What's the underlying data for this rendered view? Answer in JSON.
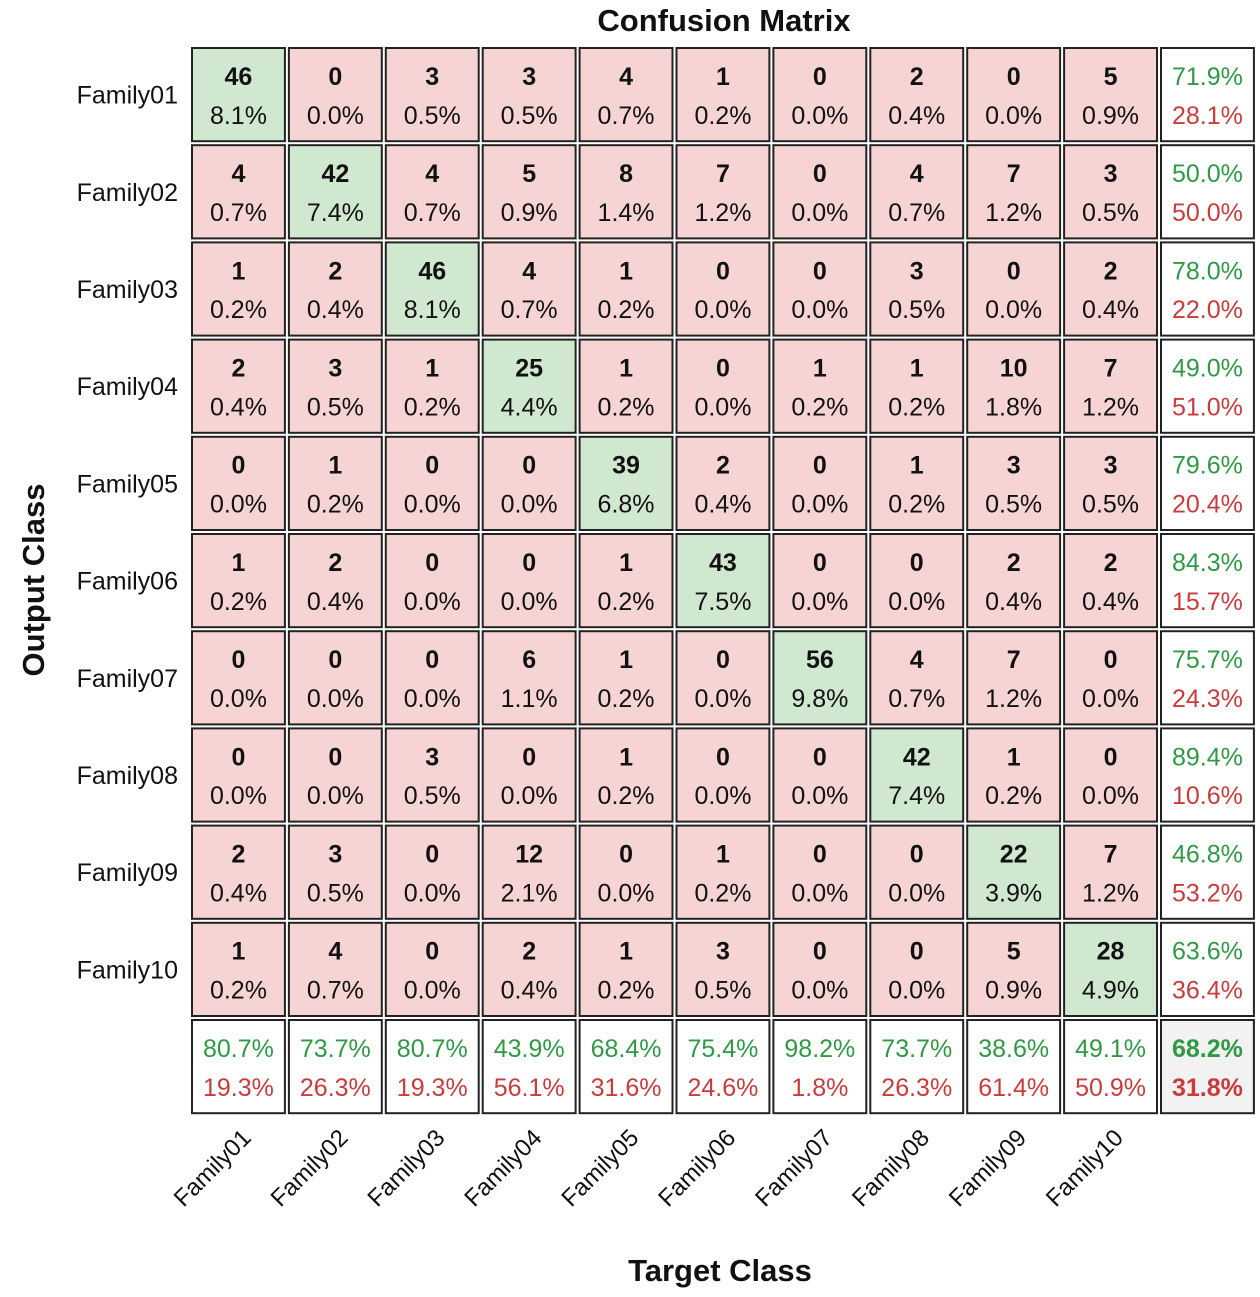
{
  "chart_data": {
    "type": "heatmap",
    "title": "Confusion Matrix",
    "xlabel": "Target Class",
    "ylabel": "Output Class",
    "row_labels": [
      "Family01",
      "Family02",
      "Family03",
      "Family04",
      "Family05",
      "Family06",
      "Family07",
      "Family08",
      "Family09",
      "Family10"
    ],
    "col_labels": [
      "Family01",
      "Family02",
      "Family03",
      "Family04",
      "Family05",
      "Family06",
      "Family07",
      "Family08",
      "Family09",
      "Family10"
    ],
    "counts": [
      [
        46,
        0,
        3,
        3,
        4,
        1,
        0,
        2,
        0,
        5
      ],
      [
        4,
        42,
        4,
        5,
        8,
        7,
        0,
        4,
        7,
        3
      ],
      [
        1,
        2,
        46,
        4,
        1,
        0,
        0,
        3,
        0,
        2
      ],
      [
        2,
        3,
        1,
        25,
        1,
        0,
        1,
        1,
        10,
        7
      ],
      [
        0,
        1,
        0,
        0,
        39,
        2,
        0,
        1,
        3,
        3
      ],
      [
        1,
        2,
        0,
        0,
        1,
        43,
        0,
        0,
        2,
        2
      ],
      [
        0,
        0,
        0,
        6,
        1,
        0,
        56,
        4,
        7,
        0
      ],
      [
        0,
        0,
        3,
        0,
        1,
        0,
        0,
        42,
        1,
        0
      ],
      [
        2,
        3,
        0,
        12,
        0,
        1,
        0,
        0,
        22,
        7
      ],
      [
        1,
        4,
        0,
        2,
        1,
        3,
        0,
        0,
        5,
        28
      ]
    ],
    "percents": [
      [
        "8.1%",
        "0.0%",
        "0.5%",
        "0.5%",
        "0.7%",
        "0.2%",
        "0.0%",
        "0.4%",
        "0.0%",
        "0.9%"
      ],
      [
        "0.7%",
        "7.4%",
        "0.7%",
        "0.9%",
        "1.4%",
        "1.2%",
        "0.0%",
        "0.7%",
        "1.2%",
        "0.5%"
      ],
      [
        "0.2%",
        "0.4%",
        "8.1%",
        "0.7%",
        "0.2%",
        "0.0%",
        "0.0%",
        "0.5%",
        "0.0%",
        "0.4%"
      ],
      [
        "0.4%",
        "0.5%",
        "0.2%",
        "4.4%",
        "0.2%",
        "0.0%",
        "0.2%",
        "0.2%",
        "1.8%",
        "1.2%"
      ],
      [
        "0.0%",
        "0.2%",
        "0.0%",
        "0.0%",
        "6.8%",
        "0.4%",
        "0.0%",
        "0.2%",
        "0.5%",
        "0.5%"
      ],
      [
        "0.2%",
        "0.4%",
        "0.0%",
        "0.0%",
        "0.2%",
        "7.5%",
        "0.0%",
        "0.0%",
        "0.4%",
        "0.4%"
      ],
      [
        "0.0%",
        "0.0%",
        "0.0%",
        "1.1%",
        "0.2%",
        "0.0%",
        "9.8%",
        "0.7%",
        "1.2%",
        "0.0%"
      ],
      [
        "0.0%",
        "0.0%",
        "0.5%",
        "0.0%",
        "0.2%",
        "0.0%",
        "0.0%",
        "7.4%",
        "0.2%",
        "0.0%"
      ],
      [
        "0.4%",
        "0.5%",
        "0.0%",
        "2.1%",
        "0.0%",
        "0.2%",
        "0.0%",
        "0.0%",
        "3.9%",
        "1.2%"
      ],
      [
        "0.2%",
        "0.7%",
        "0.0%",
        "0.4%",
        "0.2%",
        "0.5%",
        "0.0%",
        "0.0%",
        "0.9%",
        "4.9%"
      ]
    ],
    "row_summary": [
      [
        "71.9%",
        "28.1%"
      ],
      [
        "50.0%",
        "50.0%"
      ],
      [
        "78.0%",
        "22.0%"
      ],
      [
        "49.0%",
        "51.0%"
      ],
      [
        "79.6%",
        "20.4%"
      ],
      [
        "84.3%",
        "15.7%"
      ],
      [
        "75.7%",
        "24.3%"
      ],
      [
        "89.4%",
        "10.6%"
      ],
      [
        "46.8%",
        "53.2%"
      ],
      [
        "63.6%",
        "36.4%"
      ]
    ],
    "col_summary": [
      [
        "80.7%",
        "19.3%"
      ],
      [
        "73.7%",
        "26.3%"
      ],
      [
        "80.7%",
        "19.3%"
      ],
      [
        "43.9%",
        "56.1%"
      ],
      [
        "68.4%",
        "31.6%"
      ],
      [
        "75.4%",
        "24.6%"
      ],
      [
        "98.2%",
        "1.8%"
      ],
      [
        "73.7%",
        "26.3%"
      ],
      [
        "38.6%",
        "61.4%"
      ],
      [
        "49.1%",
        "50.9%"
      ]
    ],
    "total": [
      "68.2%",
      "31.8%"
    ]
  },
  "colors": {
    "diagonal": "#cfe8cf",
    "off_diagonal": "#f7d4d4",
    "summary_bg": "#ffffff",
    "good_text": "#2e9a44",
    "bad_text": "#cc3b3b",
    "grid": "#222222"
  }
}
